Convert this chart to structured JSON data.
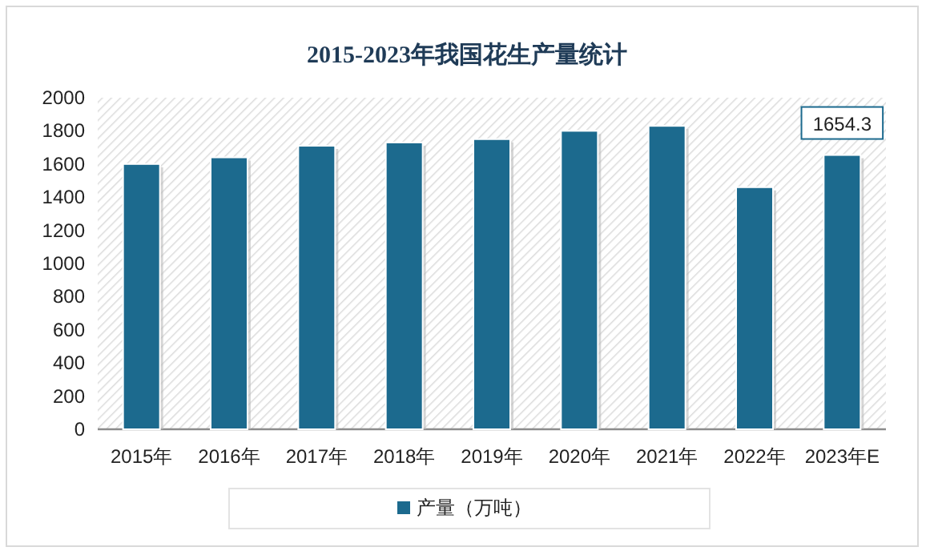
{
  "chart_data": {
    "type": "bar",
    "title": "2015-2023年我国花生产量统计",
    "categories": [
      "2015年",
      "2016年",
      "2017年",
      "2018年",
      "2019年",
      "2020年",
      "2021年",
      "2022年",
      "2023年E"
    ],
    "series": [
      {
        "name": "产量（万吨）",
        "color": "#1c6a8e",
        "values": [
          1600,
          1640,
          1710,
          1730,
          1750,
          1800,
          1830,
          1460,
          1654.3
        ],
        "value_labels": [
          null,
          null,
          null,
          null,
          null,
          null,
          null,
          null,
          "1654.3"
        ]
      }
    ],
    "ylim": [
      0,
      2000
    ],
    "yticks": [
      0,
      200,
      400,
      600,
      800,
      1000,
      1200,
      1400,
      1600,
      1800,
      2000
    ],
    "grid": false,
    "legend": "bottom"
  }
}
